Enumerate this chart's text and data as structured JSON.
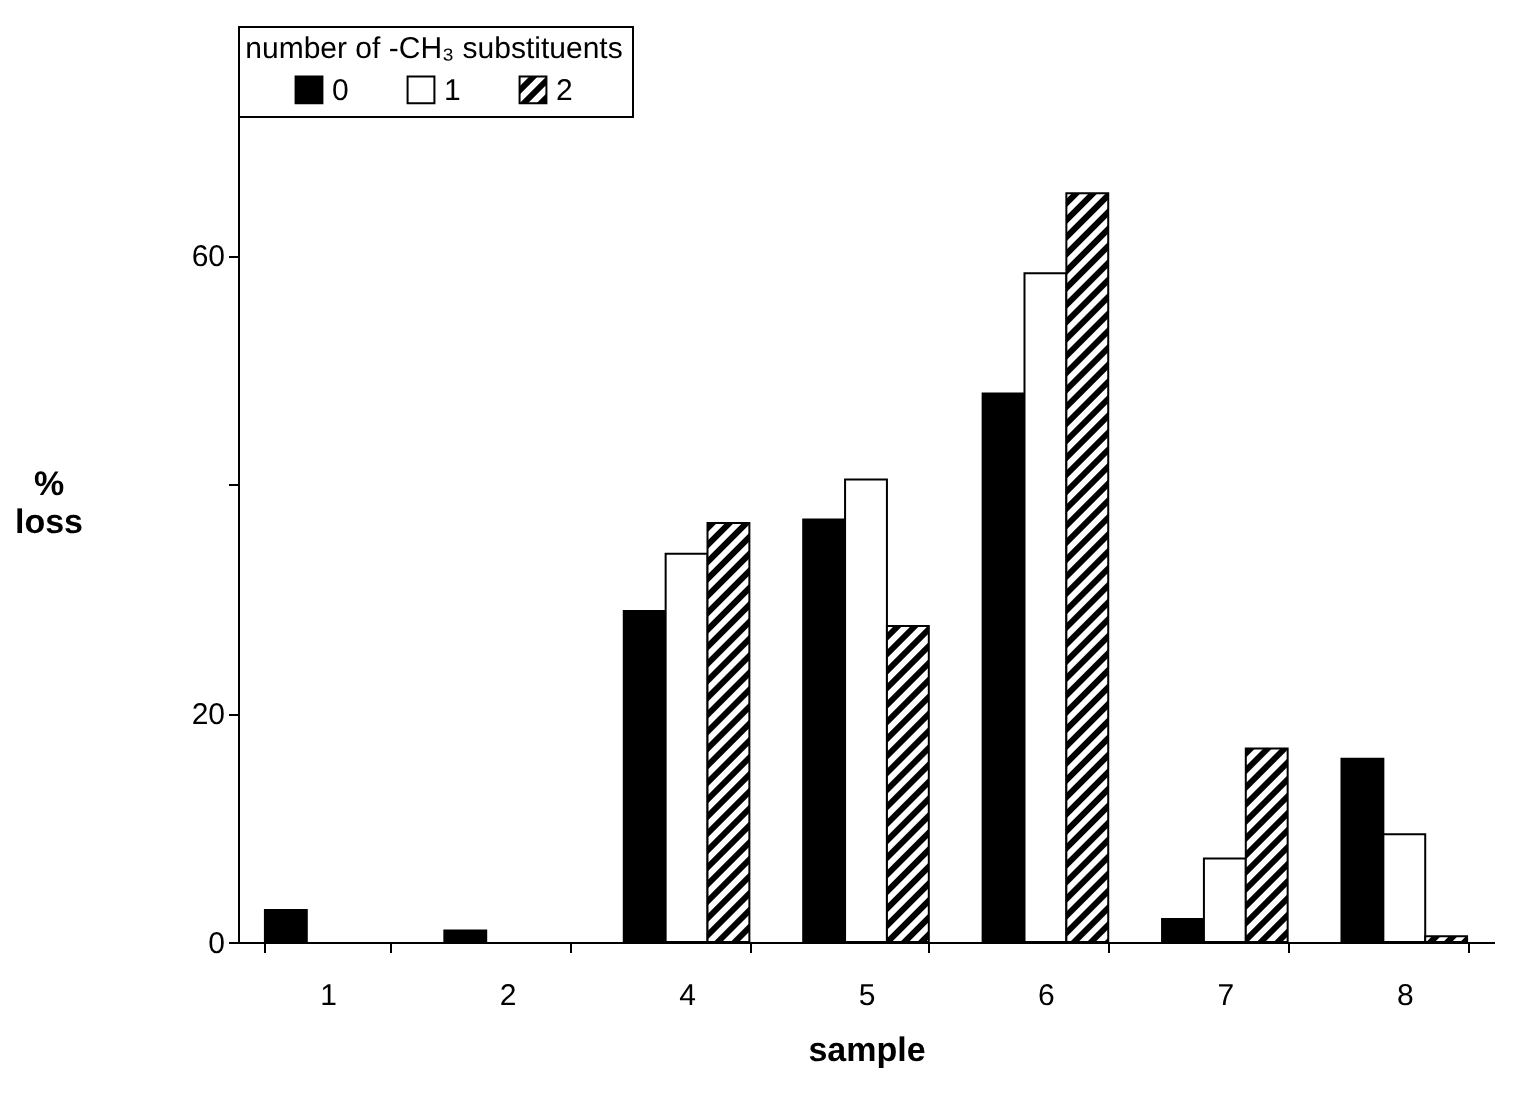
{
  "chart_data": {
    "type": "bar",
    "xlabel": "sample",
    "ylabel": "% loss",
    "legend_title": "number of -CH₃ substituents",
    "categories": [
      "1",
      "2",
      "4",
      "5",
      "6",
      "7",
      "8"
    ],
    "series": [
      {
        "name": "0",
        "color": "#000000",
        "values": [
          2.8,
          1,
          28.9,
          36.9,
          47.9,
          2,
          16
        ]
      },
      {
        "name": "1",
        "color": "#ffffff",
        "values": [
          null,
          null,
          33.9,
          40.4,
          58.4,
          7.3,
          9.4
        ]
      },
      {
        "name": "2",
        "color": "#000000",
        "values": [
          null,
          null,
          36.6,
          27.6,
          65.4,
          16.9,
          0.5
        ]
      }
    ],
    "ylim": [
      0,
      80
    ],
    "yticks": [
      0,
      20,
      {
        "value": 40,
        "label": null
      },
      60
    ],
    "grid": false,
    "legend": "top left"
  }
}
